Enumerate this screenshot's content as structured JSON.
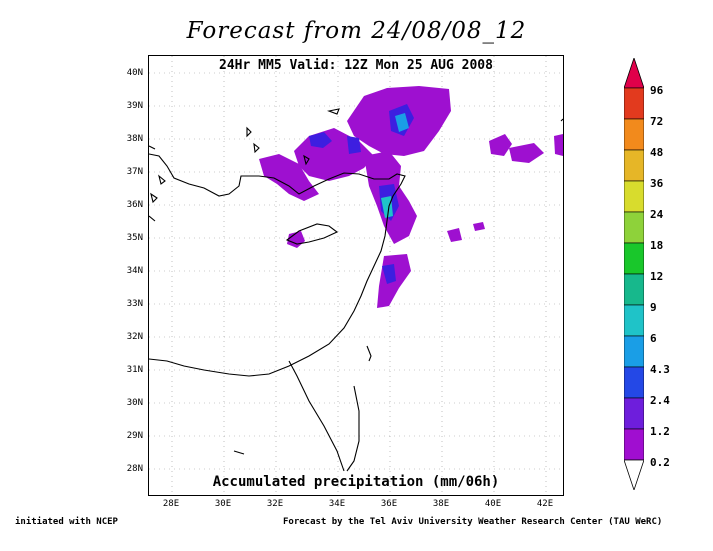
{
  "title": "Forecast from 24/08/08_12",
  "subtitle": "24Hr MM5 Valid: 12Z Mon 25 AUG 2008",
  "caption": "Accumulated precipitation (mm/06h)",
  "lat_labels": [
    "40N",
    "39N",
    "38N",
    "37N",
    "36N",
    "35N",
    "34N",
    "33N",
    "32N",
    "31N",
    "30N",
    "29N",
    "28N"
  ],
  "lon_labels": [
    "28E",
    "30E",
    "32E",
    "34E",
    "36E",
    "38E",
    "40E",
    "42E"
  ],
  "legend": {
    "levels": [
      "96",
      "72",
      "48",
      "36",
      "24",
      "18",
      "12",
      "9",
      "6",
      "4.3",
      "2.4",
      "1.2",
      "0.2"
    ],
    "colors": [
      "#e0004a",
      "#e23a1e",
      "#f28a1c",
      "#e6b627",
      "#d8dc2d",
      "#8ed23a",
      "#19c72b",
      "#17b88c",
      "#1fc3c8",
      "#1a9ee6",
      "#2448e6",
      "#6e1edc",
      "#a00ed0"
    ]
  },
  "footer": {
    "left": "initiated with NCEP",
    "right": "Forecast by the Tel Aviv University Weather Research Center (TAU WeRC)"
  }
}
